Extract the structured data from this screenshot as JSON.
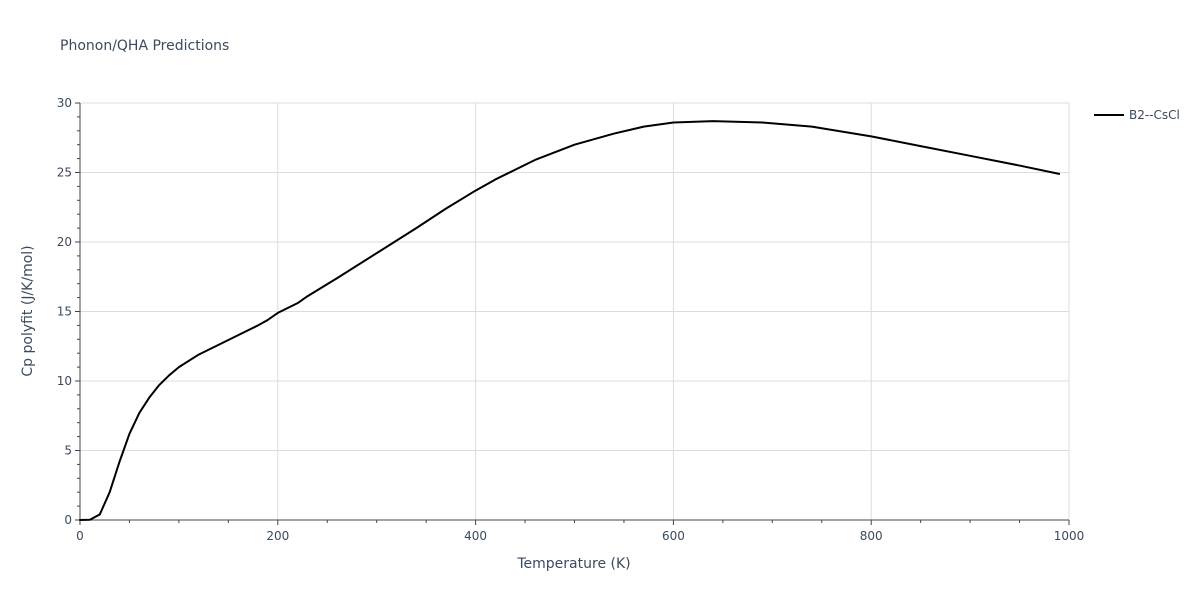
{
  "chart_data": {
    "type": "line",
    "title": "Phonon/QHA Predictions",
    "xlabel": "Temperature (K)",
    "ylabel": "Cp polyfit (J/K/mol)",
    "xlim": [
      0,
      1000
    ],
    "ylim": [
      0,
      30
    ],
    "x_ticks": [
      0,
      200,
      400,
      600,
      800,
      1000
    ],
    "y_ticks": [
      0,
      5,
      10,
      15,
      20,
      25,
      30
    ],
    "grid": true,
    "legend_position": "top-right",
    "series": [
      {
        "name": "B2--CsCl",
        "color": "#000000",
        "x": [
          0,
          10,
          20,
          30,
          40,
          50,
          60,
          70,
          80,
          90,
          100,
          120,
          140,
          160,
          180,
          190,
          200,
          220,
          230,
          260,
          300,
          340,
          370,
          400,
          420,
          460,
          500,
          540,
          570,
          600,
          640,
          690,
          740,
          800,
          850,
          900,
          950,
          990
        ],
        "y": [
          0,
          0.02,
          0.4,
          2.0,
          4.2,
          6.2,
          7.7,
          8.8,
          9.7,
          10.4,
          11.0,
          11.9,
          12.6,
          13.3,
          14.0,
          14.4,
          14.9,
          15.6,
          16.1,
          17.4,
          19.2,
          21.0,
          22.4,
          23.7,
          24.5,
          25.9,
          27.0,
          27.8,
          28.3,
          28.6,
          28.7,
          28.6,
          28.3,
          27.6,
          26.9,
          26.2,
          25.5,
          24.9
        ]
      }
    ]
  }
}
